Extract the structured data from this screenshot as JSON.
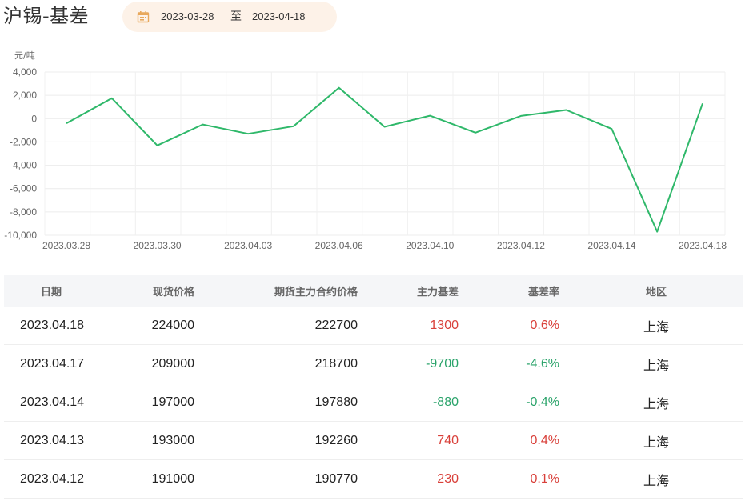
{
  "header": {
    "title": "沪锡-基差",
    "date_start": "2023-03-28",
    "date_sep": "至",
    "date_end": "2023-04-18",
    "calendar_icon": "calendar-icon"
  },
  "colors": {
    "line": "#2fb86a",
    "positive": "#d9403a",
    "negative": "#2aa36a",
    "date_bg": "#fdf2e8",
    "calendar_icon": "#e8a85c"
  },
  "chart_data": {
    "type": "line",
    "ylabel": "元/吨",
    "ylim": [
      -10000,
      4000
    ],
    "yticks": [
      4000,
      2000,
      0,
      -2000,
      -4000,
      -6000,
      -8000,
      -10000
    ],
    "ytick_labels": [
      "4,000",
      "2,000",
      "0",
      "-2,000",
      "-4,000",
      "-6,000",
      "-8,000",
      "-10,000"
    ],
    "xtick_labels": [
      "2023.03.28",
      "2023.03.30",
      "2023.04.03",
      "2023.04.06",
      "2023.04.10",
      "2023.04.12",
      "2023.04.14",
      "2023.04.18"
    ],
    "x": [
      "2023.03.28",
      "2023.03.29",
      "2023.03.30",
      "2023.03.31",
      "2023.04.03",
      "2023.04.04",
      "2023.04.06",
      "2023.04.07",
      "2023.04.10",
      "2023.04.11",
      "2023.04.12",
      "2023.04.13",
      "2023.04.14",
      "2023.04.17",
      "2023.04.18"
    ],
    "series": [
      {
        "values": [
          -400,
          1750,
          -2300,
          -500,
          -1300,
          -650,
          2650,
          -700,
          250,
          -1200,
          230,
          740,
          -880,
          -9700,
          1300
        ]
      }
    ],
    "grid": true
  },
  "table": {
    "headers": {
      "date": "日期",
      "spot": "现货价格",
      "futures": "期货主力合约价格",
      "basis": "主力基差",
      "rate": "基差率",
      "region": "地区"
    },
    "rows": [
      {
        "date": "2023.04.18",
        "spot": "224000",
        "futures": "222700",
        "basis": "1300",
        "rate": "0.6%",
        "region": "上海",
        "sign": "pos"
      },
      {
        "date": "2023.04.17",
        "spot": "209000",
        "futures": "218700",
        "basis": "-9700",
        "rate": "-4.6%",
        "region": "上海",
        "sign": "neg"
      },
      {
        "date": "2023.04.14",
        "spot": "197000",
        "futures": "197880",
        "basis": "-880",
        "rate": "-0.4%",
        "region": "上海",
        "sign": "neg"
      },
      {
        "date": "2023.04.13",
        "spot": "193000",
        "futures": "192260",
        "basis": "740",
        "rate": "0.4%",
        "region": "上海",
        "sign": "pos"
      },
      {
        "date": "2023.04.12",
        "spot": "191000",
        "futures": "190770",
        "basis": "230",
        "rate": "0.1%",
        "region": "上海",
        "sign": "pos"
      }
    ]
  }
}
